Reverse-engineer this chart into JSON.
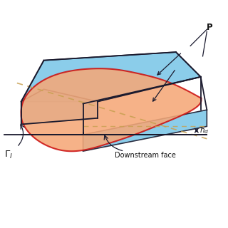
{
  "bg_color": "#ffffff",
  "light_blue": "#7FC8E8",
  "orange_fill": "#F5A878",
  "red_outline": "#CC1111",
  "dark_line": "#1a1a2e",
  "dashed_orange": "#C8A050",
  "dashed_black": "#333333",
  "text_color": "#111111",
  "label_downstream": "Downstream face",
  "label_P": "P",
  "label_Gamma": "Γ"
}
